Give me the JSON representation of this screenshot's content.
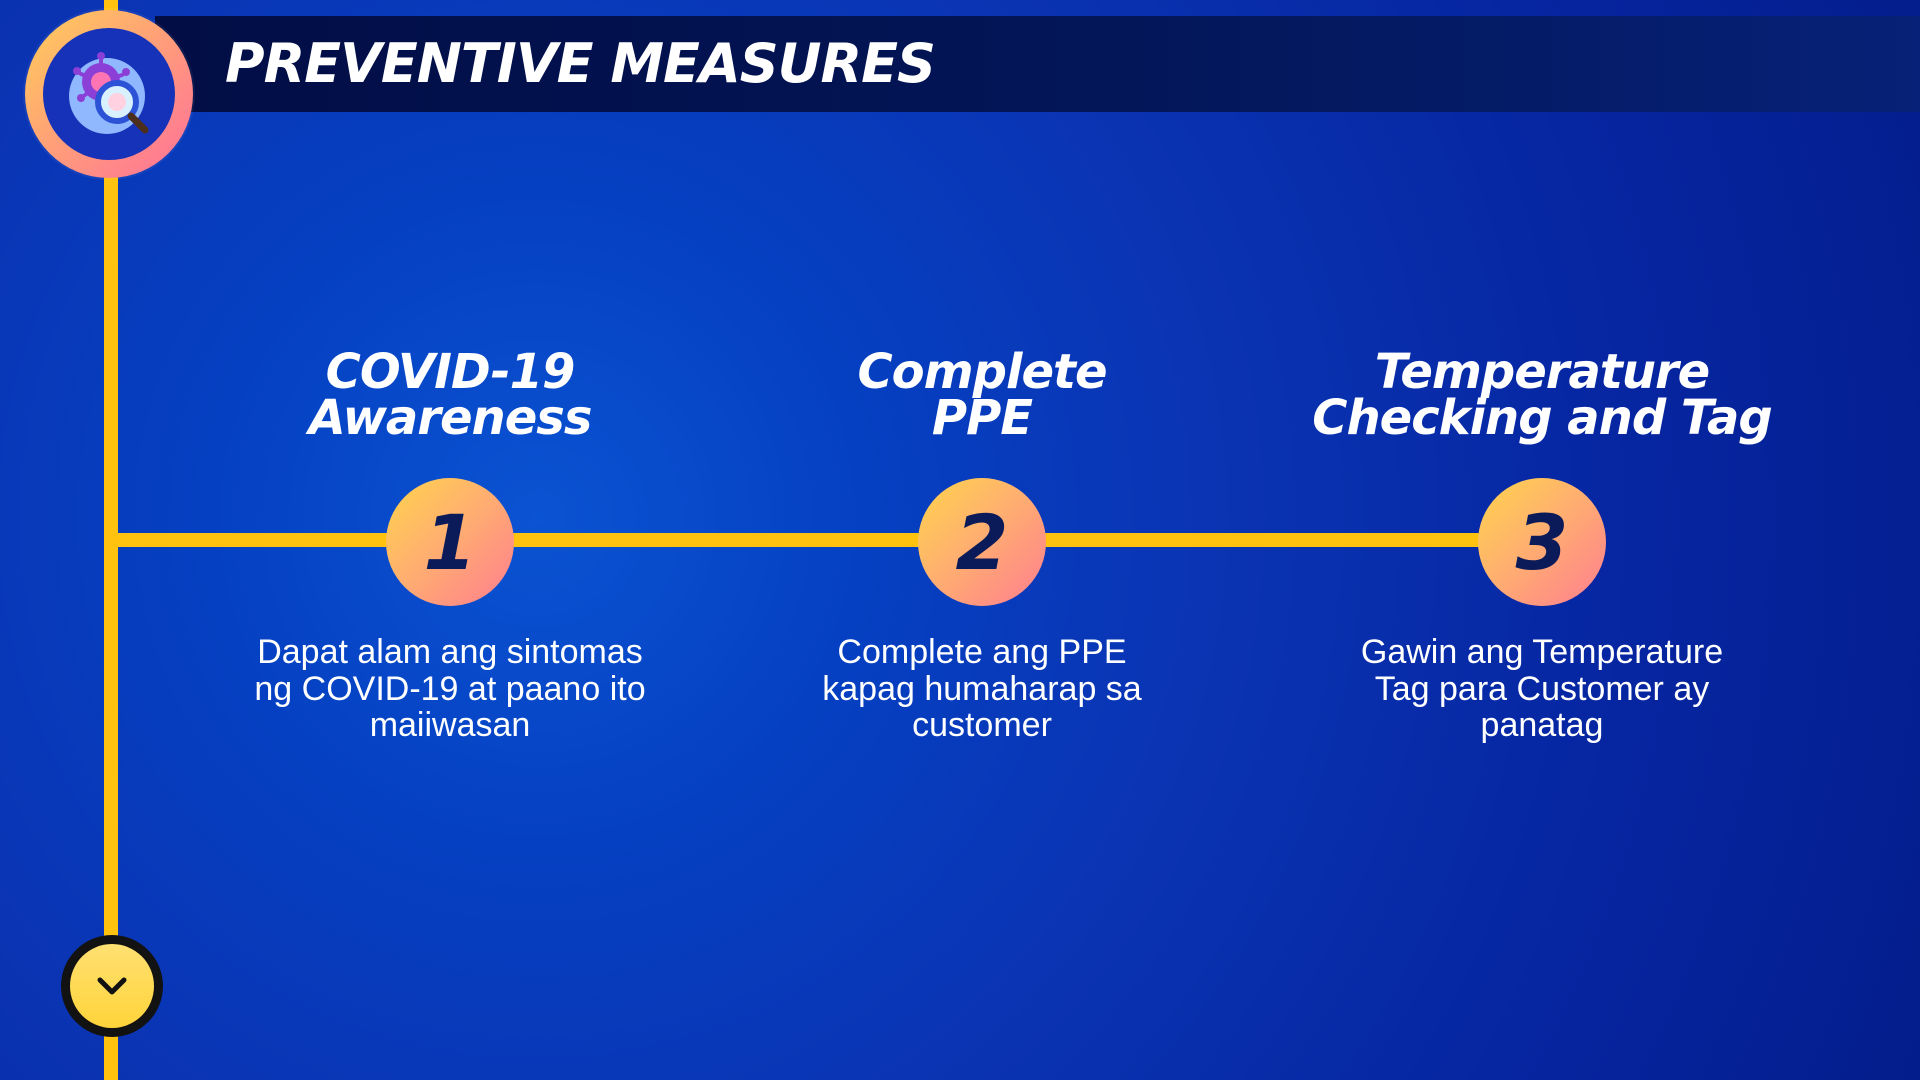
{
  "header": {
    "title": "PREVENTIVE MEASURES"
  },
  "steps": [
    {
      "number": "1",
      "title": "COVID-19\nAwareness",
      "description": "Dapat alam ang sintomas\nng COVID-19 at paano ito\nmaiiwasan"
    },
    {
      "number": "2",
      "title": "Complete\nPPE",
      "description": "Complete ang PPE\nkapag humaharap sa\ncustomer"
    },
    {
      "number": "3",
      "title": "Temperature\nChecking and Tag",
      "description": "Gawin ang Temperature\nTag para Customer ay\npanatag"
    }
  ],
  "controls": {
    "scroll_icon": "chevron-down-icon"
  },
  "colors": {
    "background": "#0540c2",
    "header_bar": "#031658",
    "timeline": "#ffc20e",
    "title_text": "#ffffff",
    "number_text": "#0b1b59",
    "accent_pink": "#ff7d8f",
    "accent_yellow": "#ffd44b"
  }
}
